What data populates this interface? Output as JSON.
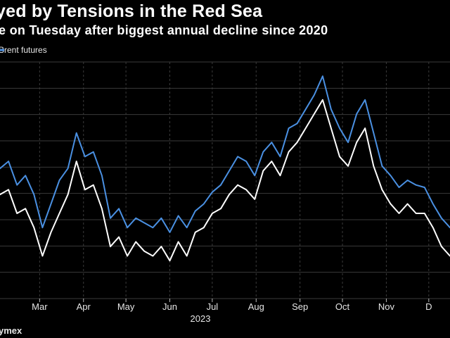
{
  "title": "yed by Tensions in the Red Sea",
  "subtitle": "e on Tuesday after biggest annual decline since 2020",
  "legend": {
    "label": "Brent futures"
  },
  "source": "ymex",
  "colors": {
    "background": "#000000",
    "brent": "#4a90e2",
    "wti": "#ffffff",
    "grid": "#3a3a3a",
    "text": "#ffffff"
  },
  "chart_data": {
    "type": "line",
    "title": "yed by Tensions in the Red Sea",
    "subtitle": "e on Tuesday after biggest annual decline since 2020",
    "xlabel": "2023",
    "ylabel": "",
    "x_ticks": [
      "Mar",
      "Apr",
      "May",
      "Jun",
      "Jul",
      "Aug",
      "Sep",
      "Oct",
      "Nov",
      "D"
    ],
    "x_tick_days": [
      28,
      59,
      89,
      120,
      150,
      181,
      212,
      242,
      273,
      303
    ],
    "x_range": [
      0,
      318
    ],
    "y_range": [
      0,
      100
    ],
    "grid": true,
    "legend_position": "top-left",
    "series": [
      {
        "name": "Brent futures",
        "color": "#4a90e2",
        "x": [
          0,
          6,
          12,
          18,
          24,
          30,
          36,
          42,
          48,
          54,
          60,
          66,
          72,
          78,
          84,
          90,
          96,
          102,
          108,
          114,
          120,
          126,
          132,
          138,
          144,
          150,
          156,
          162,
          168,
          174,
          180,
          186,
          192,
          198,
          204,
          210,
          216,
          222,
          228,
          234,
          240,
          246,
          252,
          258,
          264,
          270,
          276,
          282,
          288,
          294,
          300,
          306,
          312,
          318
        ],
        "values": [
          55,
          58,
          48,
          52,
          44,
          30,
          40,
          50,
          55,
          70,
          60,
          62,
          52,
          34,
          38,
          30,
          34,
          32,
          30,
          34,
          28,
          35,
          30,
          37,
          40,
          45,
          48,
          54,
          60,
          58,
          52,
          62,
          66,
          60,
          72,
          74,
          80,
          86,
          94,
          80,
          72,
          66,
          78,
          84,
          70,
          56,
          52,
          47,
          50,
          48,
          47,
          40,
          34,
          30
        ]
      },
      {
        "name": "",
        "color": "#ffffff",
        "x": [
          0,
          6,
          12,
          18,
          24,
          30,
          36,
          42,
          48,
          54,
          60,
          66,
          72,
          78,
          84,
          90,
          96,
          102,
          108,
          114,
          120,
          126,
          132,
          138,
          144,
          150,
          156,
          162,
          168,
          174,
          180,
          186,
          192,
          198,
          204,
          210,
          216,
          222,
          228,
          234,
          240,
          246,
          252,
          258,
          264,
          270,
          276,
          282,
          288,
          294,
          300,
          306,
          312,
          318
        ],
        "values": [
          44,
          46,
          36,
          38,
          30,
          18,
          28,
          36,
          44,
          58,
          46,
          48,
          38,
          22,
          26,
          18,
          24,
          20,
          18,
          22,
          16,
          24,
          18,
          28,
          30,
          36,
          38,
          44,
          48,
          46,
          42,
          54,
          58,
          52,
          62,
          66,
          72,
          78,
          84,
          72,
          60,
          56,
          66,
          72,
          56,
          46,
          40,
          36,
          40,
          36,
          36,
          30,
          22,
          18
        ]
      }
    ]
  }
}
